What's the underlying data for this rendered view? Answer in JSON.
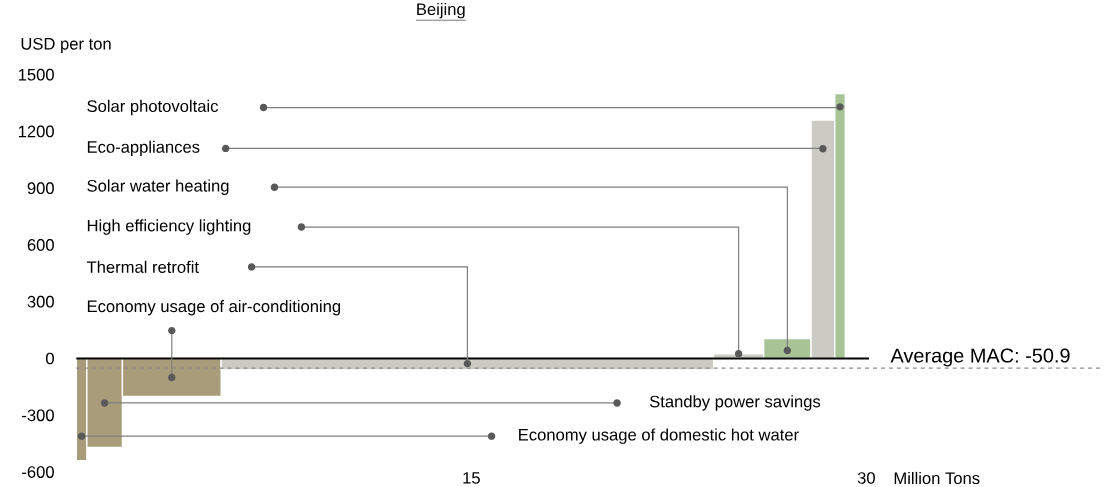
{
  "chart_data": {
    "type": "histogram",
    "title": "Beijing",
    "xlabel": "Million Tons",
    "ylabel": "USD per ton",
    "bins": [
      0,
      0.4,
      1.75,
      5.5,
      24.2,
      26.1,
      27.9,
      28.8,
      29.2
    ],
    "values": [
      -540,
      -470,
      -200,
      -60,
      25,
      105,
      1260,
      1400
    ],
    "colors": [
      "#a89c7a",
      "#a89c7a",
      "#a89c7a",
      "#cbcbc3",
      "#cbcbc3",
      "#a8c497",
      "#cbcbc3",
      "#a8c497"
    ],
    "xlim": [
      0,
      30.1
    ],
    "ylim": [
      -600,
      1500
    ],
    "xticks": [
      15,
      30
    ],
    "yticks": [
      -600,
      -300,
      0,
      300,
      600,
      900,
      1200,
      1500
    ],
    "ref_lines": [
      {
        "axis": "y",
        "value": -50.9,
        "label": "Average MAC: -50.9",
        "color": "#8c8c8c",
        "line_style": "dashed"
      }
    ],
    "annotations": [
      "Solar photovoltaic",
      "Eco-appliances",
      "Solar water heating",
      "High efficiency lighting",
      "Thermal retrofit",
      "Economy usage of air-conditioning",
      "Standby power savings",
      "Economy usage of domestic hot water"
    ]
  }
}
